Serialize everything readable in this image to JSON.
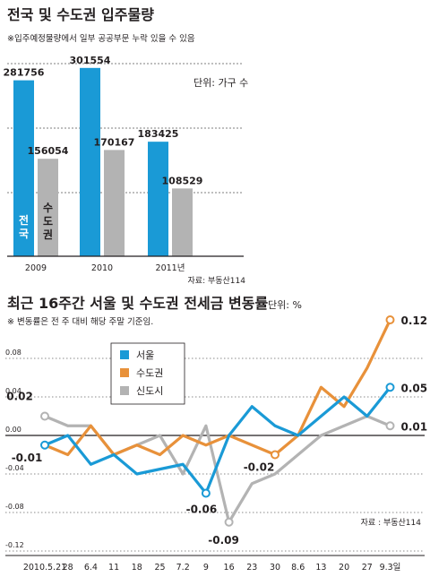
{
  "chart_data": [
    {
      "type": "bar",
      "title": "전국 및 수도권 입주물량",
      "subtitle": "※입주예정물량에서 일부 공공부문 누락 있을 수 있음",
      "unit": "단위: 가구 수",
      "source": "자료: 부동산114",
      "categories": [
        "2009",
        "2010",
        "2011년"
      ],
      "ylim": [
        0,
        330000
      ],
      "grid": "dashed horizontal",
      "series": [
        {
          "name": "전국",
          "color": "#1a9ad6",
          "values": [
            281756,
            301554,
            183425
          ],
          "labels": [
            "281756",
            "301554",
            "183425"
          ]
        },
        {
          "name": "수도권",
          "color": "#b3b3b3",
          "values": [
            156054,
            170167,
            108529
          ],
          "labels": [
            "156054",
            "170167",
            "108529"
          ]
        }
      ]
    },
    {
      "type": "line",
      "title": "최근 16주간 서울 및 수도권 전세금 변동률",
      "unit": "단위: %",
      "subtitle": "※ 변동률은 전 주 대비 해당 주말 기준임.",
      "source": "자료 : 부동산114",
      "x": [
        "2010.5.21",
        "28",
        "6.4",
        "11",
        "18",
        "25",
        "7.2",
        "9",
        "16",
        "23",
        "30",
        "8.6",
        "13",
        "20",
        "27",
        "9.3일"
      ],
      "ylim": [
        -0.12,
        0.12
      ],
      "yticks": [
        "0.08",
        "0.04",
        "0.00",
        "-0.04",
        "-0.08",
        "-0.12"
      ],
      "legend_position": "center",
      "series": [
        {
          "name": "서울",
          "color": "#1a9ad6",
          "values": [
            -0.01,
            0.0,
            -0.03,
            -0.02,
            -0.04,
            -0.035,
            -0.03,
            -0.06,
            0.0,
            0.03,
            0.01,
            0.0,
            0.02,
            0.04,
            0.02,
            0.05
          ]
        },
        {
          "name": "수도권",
          "color": "#e8913a",
          "values": [
            -0.01,
            -0.02,
            0.01,
            -0.02,
            -0.01,
            -0.02,
            0.0,
            -0.01,
            0.0,
            -0.01,
            -0.02,
            0.0,
            0.05,
            0.03,
            0.07,
            0.12
          ]
        },
        {
          "name": "신도시",
          "color": "#b3b3b3",
          "values": [
            0.02,
            0.01,
            0.01,
            -0.02,
            -0.01,
            0.0,
            -0.04,
            0.01,
            -0.09,
            -0.05,
            -0.04,
            -0.02,
            0.0,
            0.01,
            0.02,
            0.01
          ]
        }
      ],
      "annotations": [
        {
          "text": "0.02",
          "point": 0,
          "series": 2
        },
        {
          "text": "-0.01",
          "point": 0,
          "series": 0
        },
        {
          "text": "-0.06",
          "point": 7,
          "series": 0
        },
        {
          "text": "-0.09",
          "point": 8,
          "series": 2
        },
        {
          "text": "-0.02",
          "point": 10,
          "series": 1
        },
        {
          "text": "0.12",
          "point": 15,
          "series": 1
        },
        {
          "text": "0.05",
          "point": 15,
          "series": 0
        },
        {
          "text": "0.01",
          "point": 15,
          "series": 2
        }
      ]
    }
  ]
}
